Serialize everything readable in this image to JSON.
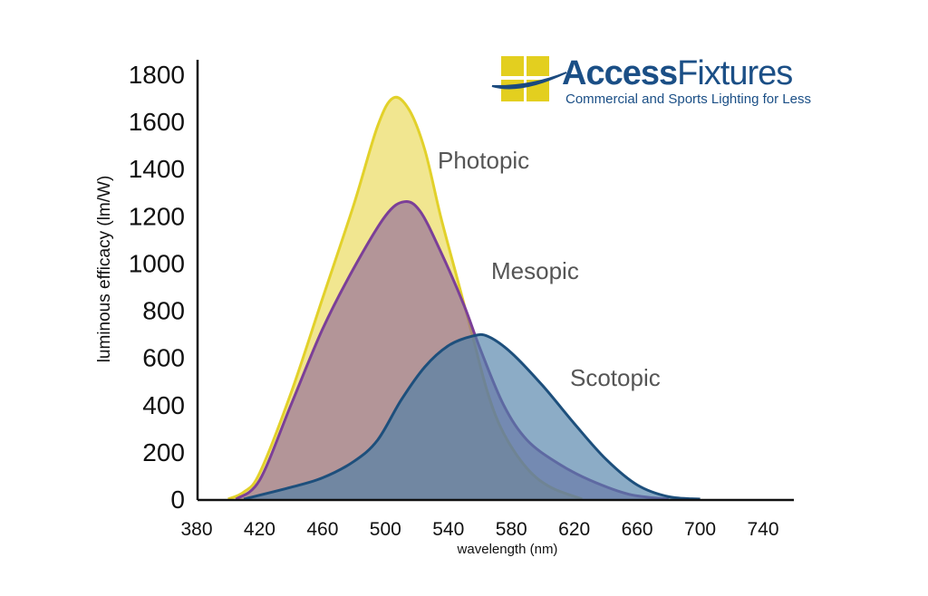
{
  "logo": {
    "name": "AccessFixtures",
    "name_part1": "Access",
    "name_part2": "Fixtures",
    "tagline": "Commercial and Sports Lighting for Less"
  },
  "chart_data": {
    "type": "area",
    "title": "",
    "xlabel": "wavelength (nm)",
    "ylabel": "luminous efficacy (lm/W)",
    "xlim": [
      380,
      760
    ],
    "ylim": [
      0,
      1800
    ],
    "x_ticks": [
      380,
      420,
      460,
      500,
      540,
      580,
      620,
      660,
      700,
      740
    ],
    "y_ticks": [
      0,
      200,
      400,
      600,
      800,
      1000,
      1200,
      1400,
      1600,
      1800
    ],
    "grid": false,
    "series": [
      {
        "name": "Photopic",
        "stroke": "#e2d12a",
        "fill": "#efe384",
        "points": [
          [
            400,
            0
          ],
          [
            410,
            30
          ],
          [
            420,
            110
          ],
          [
            440,
            450
          ],
          [
            460,
            850
          ],
          [
            480,
            1250
          ],
          [
            495,
            1580
          ],
          [
            505,
            1700
          ],
          [
            515,
            1650
          ],
          [
            525,
            1480
          ],
          [
            535,
            1200
          ],
          [
            545,
            950
          ],
          [
            555,
            700
          ],
          [
            565,
            450
          ],
          [
            575,
            280
          ],
          [
            590,
            130
          ],
          [
            605,
            50
          ],
          [
            625,
            0
          ]
        ]
      },
      {
        "name": "Mesopic",
        "stroke": "#7b3f98",
        "fill": "#8b5f9e",
        "points": [
          [
            405,
            0
          ],
          [
            420,
            80
          ],
          [
            440,
            400
          ],
          [
            460,
            720
          ],
          [
            480,
            980
          ],
          [
            500,
            1200
          ],
          [
            512,
            1260
          ],
          [
            522,
            1220
          ],
          [
            535,
            1050
          ],
          [
            550,
            820
          ],
          [
            560,
            640
          ],
          [
            575,
            400
          ],
          [
            590,
            250
          ],
          [
            610,
            150
          ],
          [
            630,
            80
          ],
          [
            655,
            20
          ],
          [
            680,
            0
          ]
        ]
      },
      {
        "name": "Scotopic",
        "stroke": "#1d4f7c",
        "fill": "#4f7fa8",
        "points": [
          [
            410,
            0
          ],
          [
            440,
            50
          ],
          [
            460,
            90
          ],
          [
            480,
            160
          ],
          [
            495,
            250
          ],
          [
            510,
            420
          ],
          [
            525,
            560
          ],
          [
            540,
            650
          ],
          [
            555,
            690
          ],
          [
            565,
            690
          ],
          [
            580,
            620
          ],
          [
            600,
            480
          ],
          [
            620,
            320
          ],
          [
            640,
            170
          ],
          [
            660,
            60
          ],
          [
            680,
            10
          ],
          [
            700,
            0
          ]
        ]
      }
    ]
  }
}
